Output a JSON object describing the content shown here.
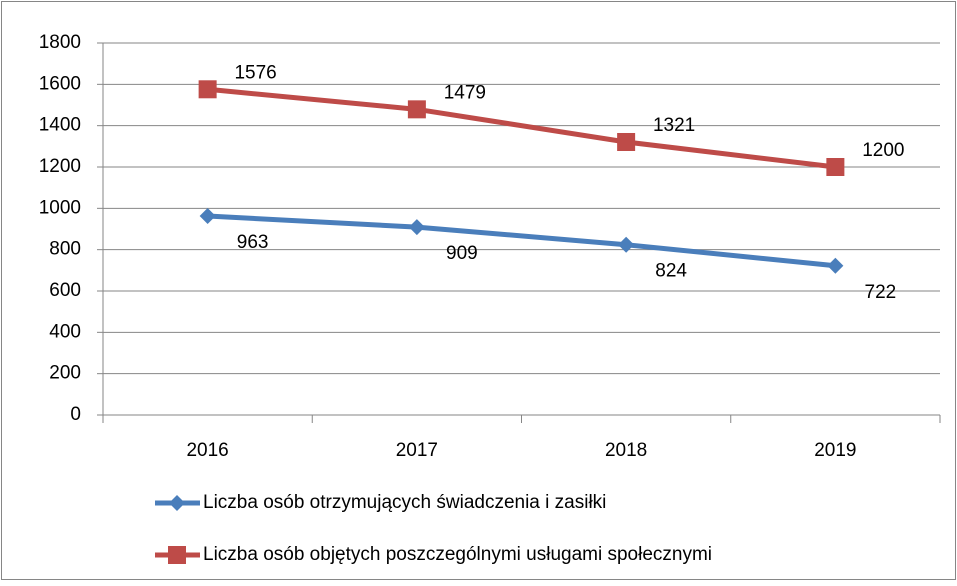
{
  "chart_data": {
    "type": "line",
    "categories": [
      "2016",
      "2017",
      "2018",
      "2019"
    ],
    "series": [
      {
        "name": "Liczba osób otrzymujących świadczenia i zasiłki",
        "color": "#4a7ebb",
        "marker": "diamond",
        "values": [
          963,
          909,
          824,
          722
        ]
      },
      {
        "name": "Liczba osób objętych poszczególnymi usługami społecznymi",
        "color": "#be4b48",
        "marker": "square",
        "values": [
          1576,
          1479,
          1321,
          1200
        ]
      }
    ],
    "ylim": [
      0,
      1800
    ],
    "yticks": [
      0,
      200,
      400,
      600,
      800,
      1000,
      1200,
      1400,
      1600,
      1800
    ],
    "grid": true,
    "legend": "bottom"
  }
}
